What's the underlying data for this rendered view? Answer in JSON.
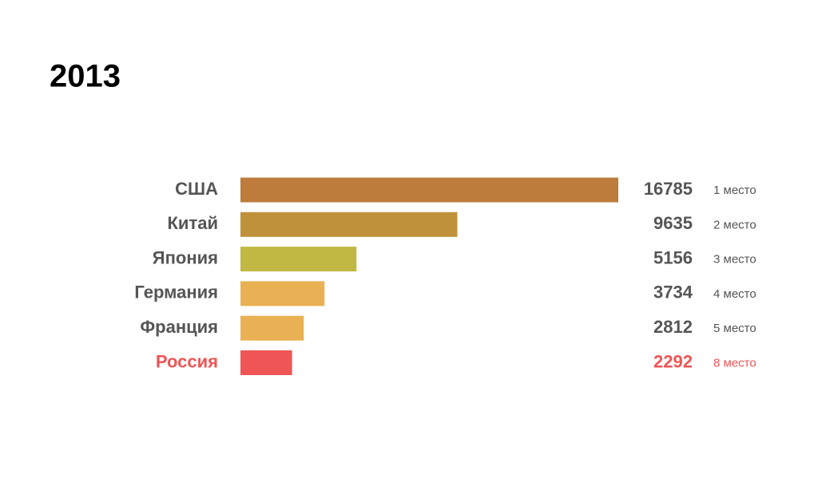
{
  "chart_data": {
    "type": "bar",
    "orientation": "horizontal",
    "title": "2013",
    "categories": [
      "США",
      "Китай",
      "Япония",
      "Германия",
      "Франция",
      "Россия"
    ],
    "values": [
      16785,
      9635,
      5156,
      3734,
      2812,
      2292
    ],
    "rank_labels": [
      "1 место",
      "2 место",
      "3 место",
      "4 место",
      "5 место",
      "8 место"
    ],
    "colors": [
      "#bd7c3b",
      "#c0913b",
      "#c0b843",
      "#e9b153",
      "#e9b153",
      "#ef5555"
    ],
    "text_colors": [
      "#555555",
      "#555555",
      "#555555",
      "#555555",
      "#555555",
      "#ef5555"
    ]
  }
}
